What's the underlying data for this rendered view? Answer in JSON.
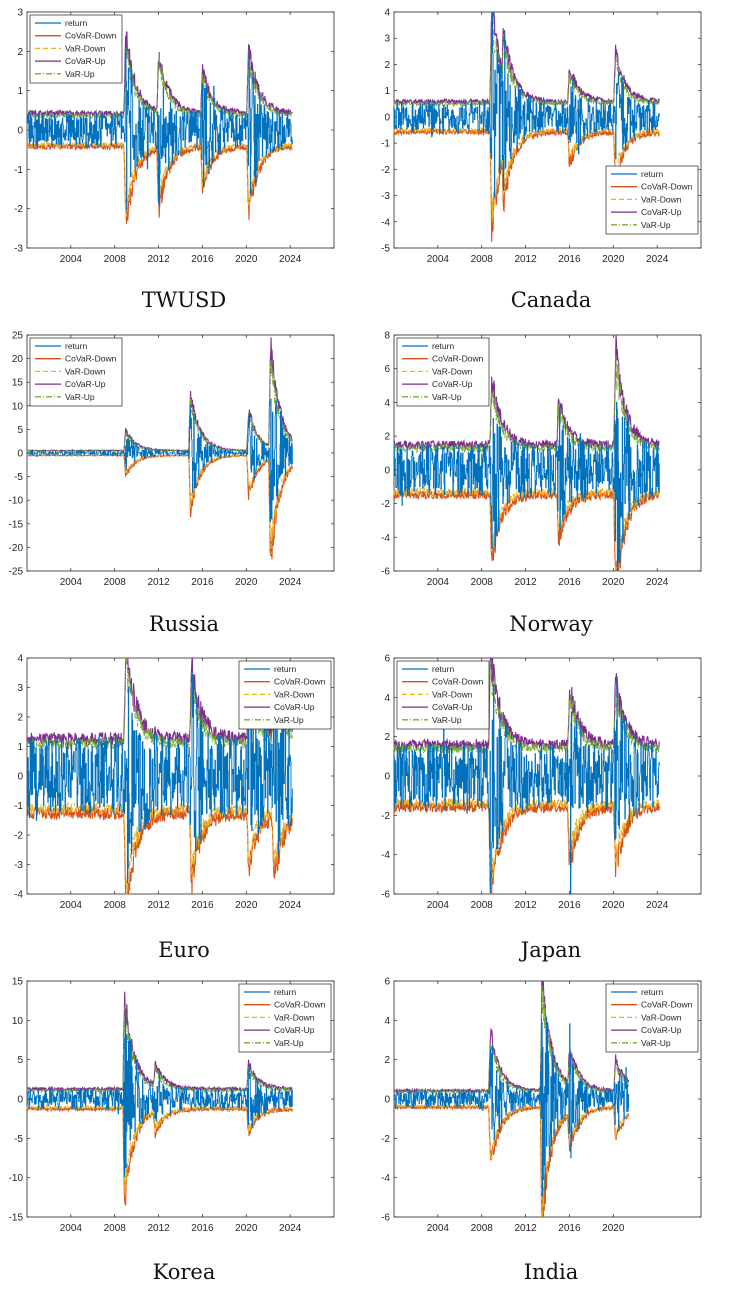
{
  "series_colors": {
    "return": "#0072bd",
    "CoVaR-Down": "#d95319",
    "VaR-Down": "#edb120",
    "CoVaR-Up": "#7e2f8e",
    "VaR-Up": "#77ac30"
  },
  "chart_data": [
    {
      "type": "line",
      "title": "TWUSD",
      "legend": "top-left",
      "xticks": [
        "2004",
        "2008",
        "2012",
        "2016",
        "2020",
        "2024"
      ],
      "ylim": [
        -3,
        3
      ],
      "yticks": [
        -3,
        -2,
        -1,
        0,
        1,
        2,
        3
      ],
      "series": [
        {
          "name": "return",
          "style": "solid"
        },
        {
          "name": "CoVaR-Down",
          "style": "solid"
        },
        {
          "name": "VaR-Down",
          "style": "dashed"
        },
        {
          "name": "CoVaR-Up",
          "style": "solid"
        },
        {
          "name": "VaR-Up",
          "style": "dashdot"
        }
      ],
      "volatility": {
        "base": 0.4,
        "peaks": [
          [
            2009.0,
            1.9
          ],
          [
            2012.0,
            1.5
          ],
          [
            2016.0,
            1.0
          ],
          [
            2020.2,
            1.6
          ]
        ]
      }
    },
    {
      "type": "line",
      "title": "Canada",
      "legend": "bottom-right",
      "xticks": [
        "2004",
        "2008",
        "2012",
        "2016",
        "2020",
        "2024"
      ],
      "ylim": [
        -5,
        4
      ],
      "yticks": [
        -5,
        -4,
        -3,
        -2,
        -1,
        0,
        1,
        2,
        3,
        4
      ],
      "series": [
        {
          "name": "return",
          "style": "solid"
        },
        {
          "name": "CoVaR-Down",
          "style": "solid"
        },
        {
          "name": "VaR-Down",
          "style": "dashed"
        },
        {
          "name": "CoVaR-Up",
          "style": "solid"
        },
        {
          "name": "VaR-Up",
          "style": "dashdot"
        }
      ],
      "volatility": {
        "base": 0.55,
        "peaks": [
          [
            2008.9,
            3.5
          ],
          [
            2010.0,
            1.5
          ],
          [
            2016.0,
            1.2
          ],
          [
            2020.2,
            1.8
          ]
        ]
      }
    },
    {
      "type": "line",
      "title": "Russia",
      "legend": "top-left",
      "xticks": [
        "2004",
        "2008",
        "2012",
        "2016",
        "2020",
        "2024"
      ],
      "ylim": [
        -25,
        25
      ],
      "yticks": [
        -25,
        -20,
        -15,
        -10,
        -5,
        0,
        5,
        10,
        15,
        20,
        25
      ],
      "series": [
        {
          "name": "return",
          "style": "solid"
        },
        {
          "name": "CoVaR-Down",
          "style": "solid"
        },
        {
          "name": "VaR-Down",
          "style": "dashed"
        },
        {
          "name": "CoVaR-Up",
          "style": "solid"
        },
        {
          "name": "VaR-Up",
          "style": "dashdot"
        }
      ],
      "volatility": {
        "base": 0.5,
        "peaks": [
          [
            2009.0,
            4.0
          ],
          [
            2014.9,
            11.0
          ],
          [
            2020.2,
            8.0
          ],
          [
            2022.2,
            20.0
          ]
        ]
      }
    },
    {
      "type": "line",
      "title": "Norway",
      "legend": "top-left",
      "xticks": [
        "2004",
        "2008",
        "2012",
        "2016",
        "2020",
        "2024"
      ],
      "ylim": [
        -6,
        8
      ],
      "yticks": [
        -6,
        -4,
        -2,
        0,
        2,
        4,
        6,
        8
      ],
      "series": [
        {
          "name": "return",
          "style": "solid"
        },
        {
          "name": "CoVaR-Down",
          "style": "solid"
        },
        {
          "name": "VaR-Down",
          "style": "dashed"
        },
        {
          "name": "CoVaR-Up",
          "style": "solid"
        },
        {
          "name": "VaR-Up",
          "style": "dashdot"
        }
      ],
      "volatility": {
        "base": 1.4,
        "peaks": [
          [
            2008.9,
            3.8
          ],
          [
            2015.0,
            2.5
          ],
          [
            2020.2,
            5.5
          ]
        ]
      }
    },
    {
      "type": "line",
      "title": "Euro",
      "legend": "top-right",
      "xticks": [
        "2004",
        "2008",
        "2012",
        "2016",
        "2020",
        "2024"
      ],
      "ylim": [
        -4,
        4
      ],
      "yticks": [
        -4,
        -3,
        -2,
        -1,
        0,
        1,
        2,
        3,
        4
      ],
      "series": [
        {
          "name": "return",
          "style": "solid"
        },
        {
          "name": "CoVaR-Down",
          "style": "solid"
        },
        {
          "name": "VaR-Down",
          "style": "dashed"
        },
        {
          "name": "CoVaR-Up",
          "style": "solid"
        },
        {
          "name": "VaR-Up",
          "style": "dashdot"
        }
      ],
      "volatility": {
        "base": 1.2,
        "peaks": [
          [
            2009.0,
            3.1
          ],
          [
            2015.0,
            2.3
          ],
          [
            2020.2,
            1.8
          ],
          [
            2022.5,
            2.0
          ]
        ]
      }
    },
    {
      "type": "line",
      "title": "Japan",
      "legend": "top-left",
      "xticks": [
        "2004",
        "2008",
        "2012",
        "2016",
        "2020",
        "2024"
      ],
      "ylim": [
        -6,
        6
      ],
      "yticks": [
        -6,
        -4,
        -2,
        0,
        2,
        4,
        6
      ],
      "series": [
        {
          "name": "return",
          "style": "solid"
        },
        {
          "name": "CoVaR-Down",
          "style": "solid"
        },
        {
          "name": "VaR-Down",
          "style": "dashed"
        },
        {
          "name": "CoVaR-Up",
          "style": "solid"
        },
        {
          "name": "VaR-Up",
          "style": "dashdot"
        }
      ],
      "volatility": {
        "base": 1.5,
        "peaks": [
          [
            2008.8,
            4.5
          ],
          [
            2016.0,
            2.8
          ],
          [
            2020.2,
            3.0
          ]
        ]
      }
    },
    {
      "type": "line",
      "title": "Korea",
      "legend": "top-right",
      "xticks": [
        "2004",
        "2008",
        "2012",
        "2016",
        "2020",
        "2024"
      ],
      "ylim": [
        -15,
        15
      ],
      "yticks": [
        -15,
        -10,
        -5,
        0,
        5,
        10,
        15
      ],
      "series": [
        {
          "name": "return",
          "style": "solid"
        },
        {
          "name": "CoVaR-Down",
          "style": "solid"
        },
        {
          "name": "VaR-Down",
          "style": "dashed"
        },
        {
          "name": "CoVaR-Up",
          "style": "solid"
        },
        {
          "name": "VaR-Up",
          "style": "dashdot"
        }
      ],
      "volatility": {
        "base": 1.2,
        "peaks": [
          [
            2008.9,
            11.0
          ],
          [
            2011.7,
            2.5
          ],
          [
            2020.2,
            3.0
          ]
        ]
      }
    },
    {
      "type": "line",
      "title": "India",
      "legend": "top-right",
      "xticks": [
        "2004",
        "2008",
        "2012",
        "2016",
        "2020"
      ],
      "ylim": [
        -6,
        6
      ],
      "yticks": [
        -6,
        -4,
        -2,
        0,
        2,
        4,
        6
      ],
      "series": [
        {
          "name": "return",
          "style": "solid"
        },
        {
          "name": "CoVaR-Down",
          "style": "solid"
        },
        {
          "name": "VaR-Down",
          "style": "dashed"
        },
        {
          "name": "CoVaR-Up",
          "style": "solid"
        },
        {
          "name": "VaR-Up",
          "style": "dashdot"
        }
      ],
      "volatility": {
        "base": 0.4,
        "peaks": [
          [
            2008.8,
            2.8
          ],
          [
            2013.5,
            5.5
          ],
          [
            2016.0,
            1.8
          ],
          [
            2020.2,
            1.5
          ]
        ]
      }
    }
  ]
}
